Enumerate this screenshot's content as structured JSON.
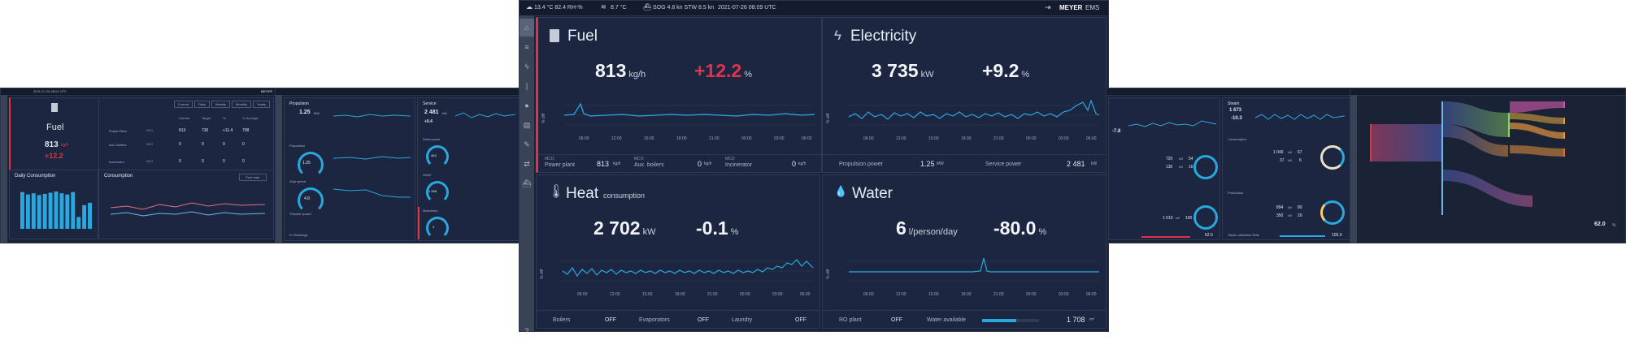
{
  "topbar": {
    "temp_hum": "13.4 °C  82.4 RH-%",
    "sea_temp": "8.7 °C",
    "sog_stw": "SOG 4.8 kn   STW 8.5 kn",
    "datetime": "2021-07-26 08:09 UTC",
    "logo": "MEYER",
    "logo_suffix": "EMS",
    "logout_icon": "⇥"
  },
  "main": {
    "fuel": {
      "title": "Fuel",
      "value": "813",
      "unit": "kg/h",
      "delta": "+12.2",
      "delta_unit": "%",
      "footer": [
        {
          "label_top": "MCO",
          "label": "Power plant",
          "value": "813",
          "unit": "kg/h"
        },
        {
          "label_top": "MCO",
          "label": "Aux. boilers",
          "value": "0",
          "unit": "kg/h"
        },
        {
          "label_top": "MCO",
          "label": "Incinerator",
          "value": "0",
          "unit": "kg/h"
        }
      ]
    },
    "electricity": {
      "title": "Electricity",
      "value": "3 735",
      "unit": "kW",
      "delta": "+9.2",
      "delta_unit": "%",
      "footer": [
        {
          "label": "Propulsion power",
          "value": "1.25",
          "unit": "MW"
        },
        {
          "label": "Service power",
          "value": "2 481",
          "unit": "kW"
        }
      ]
    },
    "heat": {
      "title": "Heat",
      "subtitle": "consumption",
      "value": "2 702",
      "unit": "kW",
      "delta": "-0.1",
      "delta_unit": "%"
    },
    "water": {
      "title": "Water",
      "value": "6",
      "unit": "l/person/day",
      "delta": "-80.0",
      "delta_unit": "%"
    },
    "x_ticks": [
      "06:00",
      "12:00",
      "15:00",
      "18:00",
      "21:00",
      "00:00",
      "03:00",
      "06:00"
    ],
    "y_label": "% diff",
    "footer_heat": [
      {
        "label": "Boilers",
        "value": "OFF"
      },
      {
        "label": "Evaporators",
        "value": "OFF"
      },
      {
        "label": "Laundry",
        "value": "OFF"
      }
    ],
    "footer_water": [
      {
        "label": "RO plant",
        "value": "OFF"
      },
      {
        "label": "Water available",
        "value": "1 708",
        "unit": "m³"
      }
    ]
  },
  "left1": {
    "fuel_title": "Fuel",
    "fuel_value": "813",
    "fuel_unit": "kg/h",
    "fuel_delta": "+12.2",
    "fuel_delta_unit": "%",
    "daily_title": "Daily Consumption",
    "consumption_title": "Consumption",
    "dropdown": "Fuel total",
    "tabs": [
      "Current",
      "Daily",
      "Weekly",
      "Monthly",
      "Yearly"
    ],
    "table_header": [
      "Current",
      "Target",
      "%",
      "Yr Average"
    ],
    "table_rows": [
      {
        "label": "Power Plant",
        "code": "MCO",
        "current": "813",
        "target": "730",
        "pct": "+11.4",
        "avg": "798"
      },
      {
        "label": "Aux. Boilers",
        "code": "MCO",
        "current": "0",
        "target": "0",
        "pct": "0",
        "avg": "0"
      },
      {
        "label": "Incinerator",
        "code": "MCO",
        "current": "0",
        "target": "0",
        "pct": "0",
        "avg": "0"
      }
    ],
    "daily_bars": [
      62,
      58,
      60,
      57,
      59,
      61,
      63,
      60,
      58,
      62,
      20,
      40,
      44
    ]
  },
  "left2": {
    "propulsion_label": "Propulsion",
    "propulsion_value": "1.25",
    "propulsion_unit": "MW",
    "propulsion_small_label": "Propulsion",
    "gauge1": "1.25",
    "ship_speed_label": "Ship speed",
    "gauge2": "4.8",
    "thruster_label": "Thruster power",
    "service_label": "Service",
    "service_value": "2 481",
    "service_unit": "kW",
    "service_delta": "+0.4",
    "hotel_label": "Hotel power",
    "hvac_label": "HVAC",
    "machinery_label": "Machinery",
    "gauges_right": [
      "463",
      "1 068",
      "3"
    ],
    "bottom_label": "Fn Rankings"
  },
  "right1": {
    "steam_label": "Steam",
    "steam_value": "1 673",
    "steam_delta": "-10.3",
    "left_value": "-7.8",
    "consumption_label": "Consumption",
    "production_label": "Production",
    "rows": [
      {
        "v": "720",
        "u": "kW",
        "p": "54"
      },
      {
        "v": "130",
        "u": "kW",
        "p": "16"
      },
      {
        "v": "1 046",
        "u": "kW",
        "p": "67"
      },
      {
        "v": "37",
        "u": "kW",
        "p": "6"
      },
      {
        "v": "1 619",
        "u": "kW",
        "p": "100"
      },
      {
        "v": "894",
        "u": "kW",
        "p": "80"
      },
      {
        "v": "350",
        "u": "kW",
        "p": "20"
      }
    ],
    "util_value": "62.0",
    "util_value2": "100.0",
    "util_label": "Steam utilization Rate"
  },
  "right2": {
    "rate_value": "62.0",
    "rate_unit": "%"
  },
  "colors": {
    "accent": "#29a8e0",
    "red": "#e0334a",
    "bg": "#1b2338",
    "panel": "#1d2640",
    "yellow": "#f0d070"
  }
}
